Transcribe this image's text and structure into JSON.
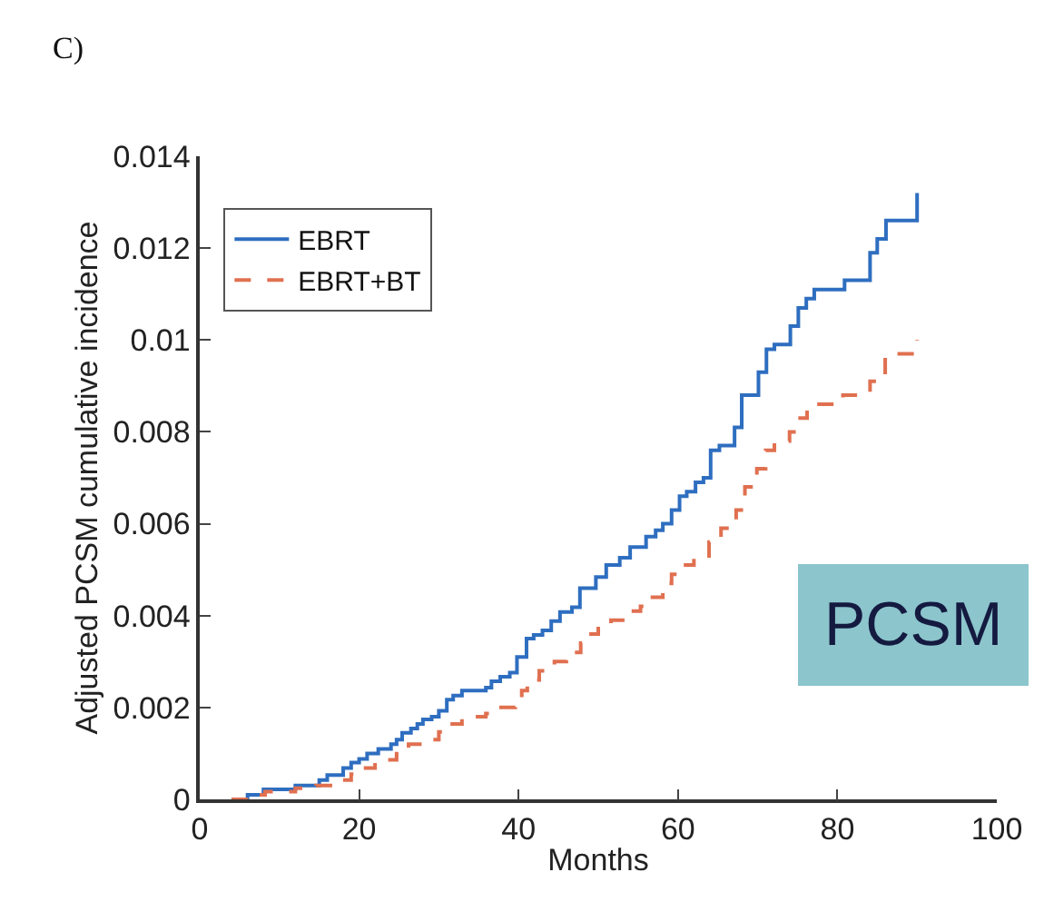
{
  "chart_data": {
    "type": "step",
    "xlabel": "Months",
    "ylabel": "Adjusted PCSM cumulative incidence",
    "annotations": [
      "C)",
      "PCSM"
    ],
    "xlim": [
      0,
      100
    ],
    "xticks": [
      0,
      20,
      40,
      60,
      80,
      100
    ],
    "ylim": [
      0,
      0.014
    ],
    "yticks": [
      0,
      0.002,
      0.004,
      0.006,
      0.008,
      {
        "value": 0.01,
        "label": "0.01"
      },
      0.012,
      0.014
    ],
    "legend": "top left",
    "series": [
      {
        "name": "EBRT",
        "color": "#2e6ec0",
        "line_style": "solid",
        "x": [
          4,
          6,
          8,
          12,
          15,
          16,
          18,
          19,
          20,
          21,
          22.4,
          24,
          24.7,
          25.4,
          26.5,
          27.3,
          28,
          29.1,
          30,
          31,
          31.8,
          32.9,
          35.9,
          36.6,
          37.7,
          38.9,
          39.8,
          41,
          41.9,
          43,
          44.1,
          45.2,
          46.7,
          47.7,
          49.7,
          51,
          52.7,
          54,
          56,
          57.2,
          58.1,
          59.2,
          60.2,
          61.1,
          62.2,
          63.2,
          64.1,
          65.2,
          67.1,
          68,
          70.1,
          71.1,
          72.1,
          74.1,
          75.1,
          76.1,
          77.1,
          80.9,
          84.1,
          85,
          86.1,
          90,
          90
        ],
        "values": [
          0,
          0.0001,
          0.00022,
          0.0003,
          0.00042,
          0.00053,
          0.00068,
          0.0008,
          0.00088,
          0.001,
          0.0011,
          0.0012,
          0.0013,
          0.00145,
          0.00154,
          0.00164,
          0.00174,
          0.0018,
          0.00193,
          0.00217,
          0.00226,
          0.00237,
          0.00243,
          0.00257,
          0.00267,
          0.00276,
          0.0031,
          0.0035,
          0.00358,
          0.00368,
          0.00388,
          0.00408,
          0.00418,
          0.0046,
          0.00484,
          0.0051,
          0.00526,
          0.00549,
          0.00572,
          0.00586,
          0.006,
          0.0063,
          0.0066,
          0.0067,
          0.0069,
          0.007,
          0.0076,
          0.0077,
          0.0081,
          0.0088,
          0.0093,
          0.0098,
          0.0099,
          0.0103,
          0.0107,
          0.0109,
          0.0111,
          0.0113,
          0.0119,
          0.0122,
          0.0126,
          0.0126,
          0.0132
        ]
      },
      {
        "name": "EBRT+BT",
        "color": "#e07050",
        "line_style": "dashed",
        "x": [
          4,
          6,
          8.2,
          12,
          14.6,
          17.6,
          19,
          20.2,
          22,
          24.7,
          26.2,
          28,
          30,
          31,
          32.9,
          35.9,
          37,
          39.6,
          40.4,
          41.1,
          42.6,
          44.5,
          46,
          47.8,
          48.6,
          50,
          51.6,
          53.4,
          55.3,
          56.8,
          58.1,
          59.2,
          60.5,
          62,
          63.9,
          65.4,
          67.3,
          68.4,
          69.9,
          71,
          72.1,
          74,
          75.1,
          76.2,
          77,
          80.7,
          84.1,
          86,
          90,
          90
        ],
        "values": [
          0,
          0.0001,
          0.00017,
          0.00024,
          0.0003,
          0.00042,
          0.00055,
          0.00068,
          0.00086,
          0.00105,
          0.0012,
          0.0013,
          0.00147,
          0.00164,
          0.0018,
          0.00187,
          0.002,
          0.0021,
          0.00237,
          0.0026,
          0.0028,
          0.003,
          0.0032,
          0.0034,
          0.0036,
          0.0038,
          0.0039,
          0.0041,
          0.0042,
          0.0044,
          0.0047,
          0.0049,
          0.0051,
          0.0053,
          0.0056,
          0.0059,
          0.0063,
          0.0068,
          0.0072,
          0.0076,
          0.0078,
          0.008,
          0.0083,
          0.0085,
          0.0086,
          0.0088,
          0.0091,
          0.0097,
          0.0097,
          0.01
        ]
      }
    ]
  }
}
